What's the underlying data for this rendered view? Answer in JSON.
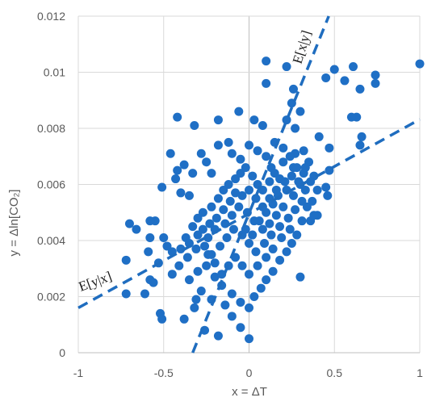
{
  "chart_data": {
    "type": "scatter",
    "title": "",
    "xlabel": "x = ΔT",
    "ylabel": "y = Δln[CO₂]",
    "xlim": [
      -1,
      1
    ],
    "ylim": [
      0,
      0.012
    ],
    "grid": true,
    "x_ticks": [
      "-1",
      "-0.5",
      "0",
      "0.5",
      "1"
    ],
    "y_ticks": [
      "0",
      "0.002",
      "0.004",
      "0.006",
      "0.008",
      "0.01",
      "0.012"
    ],
    "regression_lines": [
      {
        "label": "E[y|x]",
        "x": [
          -1,
          1
        ],
        "y": [
          0.0016,
          0.00832
        ]
      },
      {
        "label": "E[x|y]",
        "x": [
          -0.33,
          0.5
        ],
        "y": [
          0.0,
          0.0125
        ]
      }
    ],
    "points": [
      [
        1.0,
        0.0103
      ],
      [
        0.74,
        0.0099
      ],
      [
        0.74,
        0.0096
      ],
      [
        0.61,
        0.0102
      ],
      [
        0.63,
        0.0084
      ],
      [
        0.6,
        0.0084
      ],
      [
        0.65,
        0.0094
      ],
      [
        0.66,
        0.0077
      ],
      [
        0.65,
        0.0074
      ],
      [
        0.56,
        0.0097
      ],
      [
        0.5,
        0.0101
      ],
      [
        0.45,
        0.0098
      ],
      [
        0.22,
        0.0102
      ],
      [
        0.1,
        0.0104
      ],
      [
        0.1,
        0.0096
      ],
      [
        0.26,
        0.0094
      ],
      [
        0.25,
        0.0089
      ],
      [
        0.3,
        0.0086
      ],
      [
        0.22,
        0.0083
      ],
      [
        0.27,
        0.008
      ],
      [
        -0.42,
        0.0084
      ],
      [
        -0.32,
        0.0081
      ],
      [
        -0.06,
        0.0086
      ],
      [
        -0.18,
        0.0083
      ],
      [
        0.03,
        0.0083
      ],
      [
        0.08,
        0.0081
      ],
      [
        0.41,
        0.0077
      ],
      [
        0.47,
        0.0073
      ],
      [
        0.47,
        0.0065
      ],
      [
        0.45,
        0.0059
      ],
      [
        0.38,
        0.0063
      ],
      [
        0.46,
        0.0056
      ],
      [
        0.4,
        0.0049
      ],
      [
        0.31,
        0.0047
      ],
      [
        0.36,
        0.0047
      ],
      [
        0.3,
        0.0027
      ],
      [
        0.38,
        0.0049
      ],
      [
        -0.46,
        0.0071
      ],
      [
        -0.43,
        0.0062
      ],
      [
        -0.42,
        0.0065
      ],
      [
        -0.38,
        0.0067
      ],
      [
        -0.33,
        0.0064
      ],
      [
        -0.35,
        0.0056
      ],
      [
        -0.4,
        0.0057
      ],
      [
        -0.28,
        0.0071
      ],
      [
        -0.25,
        0.0068
      ],
      [
        -0.22,
        0.0064
      ],
      [
        -0.18,
        0.0074
      ],
      [
        -0.12,
        0.0075
      ],
      [
        -0.1,
        0.0071
      ],
      [
        -0.05,
        0.0069
      ],
      [
        0.0,
        0.0074
      ],
      [
        0.05,
        0.0072
      ],
      [
        0.1,
        0.007
      ],
      [
        0.15,
        0.0075
      ],
      [
        0.2,
        0.0073
      ],
      [
        0.27,
        0.0071
      ],
      [
        0.32,
        0.0072
      ],
      [
        0.35,
        0.0068
      ],
      [
        0.26,
        0.0066
      ],
      [
        0.13,
        0.0066
      ],
      [
        -0.51,
        0.0059
      ],
      [
        -0.55,
        0.0047
      ],
      [
        -0.58,
        0.0047
      ],
      [
        -0.58,
        0.0041
      ],
      [
        -0.5,
        0.0041
      ],
      [
        -0.48,
        0.0038
      ],
      [
        -0.45,
        0.0036
      ],
      [
        -0.4,
        0.0037
      ],
      [
        -0.37,
        0.0041
      ],
      [
        -0.33,
        0.0045
      ],
      [
        -0.3,
        0.0048
      ],
      [
        -0.27,
        0.005
      ],
      [
        -0.22,
        0.0052
      ],
      [
        -0.18,
        0.0055
      ],
      [
        -0.15,
        0.0058
      ],
      [
        -0.12,
        0.006
      ],
      [
        -0.08,
        0.0062
      ],
      [
        -0.05,
        0.0064
      ],
      [
        -0.02,
        0.0066
      ],
      [
        0.02,
        0.0063
      ],
      [
        0.05,
        0.006
      ],
      [
        0.08,
        0.0058
      ],
      [
        0.12,
        0.0061
      ],
      [
        0.15,
        0.0064
      ],
      [
        0.18,
        0.0062
      ],
      [
        0.22,
        0.0058
      ],
      [
        0.26,
        0.0056
      ],
      [
        0.3,
        0.006
      ],
      [
        0.33,
        0.0058
      ],
      [
        0.2,
        0.0052
      ],
      [
        0.16,
        0.0049
      ],
      [
        0.12,
        0.0046
      ],
      [
        0.08,
        0.0044
      ],
      [
        0.03,
        0.0047
      ],
      [
        -0.01,
        0.005
      ],
      [
        -0.06,
        0.0052
      ],
      [
        -0.1,
        0.0049
      ],
      [
        -0.14,
        0.0046
      ],
      [
        -0.2,
        0.0044
      ],
      [
        -0.24,
        0.0041
      ],
      [
        -0.7,
        0.0046
      ],
      [
        -0.66,
        0.0044
      ],
      [
        -0.72,
        0.0033
      ],
      [
        -0.59,
        0.0036
      ],
      [
        -0.53,
        0.0032
      ],
      [
        -0.58,
        0.0026
      ],
      [
        -0.56,
        0.0025
      ],
      [
        -0.72,
        0.0021
      ],
      [
        -0.61,
        0.0021
      ],
      [
        -0.52,
        0.0014
      ],
      [
        -0.51,
        0.0012
      ],
      [
        -0.38,
        0.0012
      ],
      [
        -0.32,
        0.0016
      ],
      [
        -0.31,
        0.0019
      ],
      [
        -0.35,
        0.0026
      ],
      [
        -0.3,
        0.0029
      ],
      [
        -0.25,
        0.0031
      ],
      [
        -0.2,
        0.0027
      ],
      [
        -0.16,
        0.0024
      ],
      [
        -0.1,
        0.0021
      ],
      [
        -0.05,
        0.0018
      ],
      [
        0.0,
        0.0016
      ],
      [
        0.03,
        0.002
      ],
      [
        0.07,
        0.0023
      ],
      [
        0.1,
        0.0026
      ],
      [
        0.14,
        0.0029
      ],
      [
        0.18,
        0.0033
      ],
      [
        0.22,
        0.0036
      ],
      [
        0.25,
        0.0039
      ],
      [
        0.28,
        0.0042
      ],
      [
        0.34,
        0.0052
      ],
      [
        0.37,
        0.0054
      ],
      [
        -0.26,
        0.0008
      ],
      [
        -0.18,
        0.0006
      ],
      [
        -0.05,
        0.0009
      ],
      [
        0.0,
        0.0005
      ],
      [
        -0.1,
        0.0013
      ],
      [
        -0.14,
        0.0017
      ],
      [
        -0.22,
        0.0019
      ],
      [
        -0.28,
        0.0022
      ],
      [
        -0.35,
        0.0039
      ],
      [
        -0.3,
        0.0042
      ],
      [
        -0.26,
        0.0038
      ],
      [
        -0.22,
        0.0035
      ],
      [
        -0.17,
        0.0038
      ],
      [
        -0.13,
        0.0041
      ],
      [
        -0.09,
        0.0044
      ],
      [
        -0.04,
        0.0042
      ],
      [
        0.0,
        0.0039
      ],
      [
        0.04,
        0.0036
      ],
      [
        0.09,
        0.0039
      ],
      [
        0.13,
        0.0042
      ],
      [
        0.18,
        0.0045
      ],
      [
        0.23,
        0.0048
      ],
      [
        0.27,
        0.0051
      ],
      [
        0.31,
        0.0054
      ],
      [
        0.24,
        0.0044
      ],
      [
        0.19,
        0.0041
      ],
      [
        0.14,
        0.0037
      ],
      [
        0.1,
        0.0034
      ],
      [
        0.05,
        0.0031
      ],
      [
        0.0,
        0.0028
      ],
      [
        -0.04,
        0.0031
      ],
      [
        -0.08,
        0.0034
      ],
      [
        -0.12,
        0.0031
      ],
      [
        -0.16,
        0.0028
      ],
      [
        -0.2,
        0.0032
      ],
      [
        -0.24,
        0.0035
      ],
      [
        -0.04,
        0.0056
      ],
      [
        0.0,
        0.0058
      ],
      [
        0.04,
        0.0055
      ],
      [
        0.08,
        0.0052
      ],
      [
        0.12,
        0.0055
      ],
      [
        0.16,
        0.0058
      ],
      [
        0.2,
        0.0068
      ],
      [
        0.24,
        0.007
      ],
      [
        0.28,
        0.0066
      ],
      [
        0.32,
        0.0064
      ],
      [
        0.36,
        0.0061
      ],
      [
        0.4,
        0.0058
      ],
      [
        -0.02,
        0.0044
      ],
      [
        0.02,
        0.0042
      ],
      [
        0.06,
        0.0047
      ],
      [
        0.1,
        0.005
      ],
      [
        0.14,
        0.0053
      ],
      [
        0.17,
        0.0056
      ],
      [
        0.21,
        0.0061
      ],
      [
        0.25,
        0.0063
      ],
      [
        0.29,
        0.0061
      ],
      [
        0.33,
        0.0066
      ],
      [
        -0.08,
        0.0057
      ],
      [
        -0.11,
        0.0054
      ],
      [
        -0.15,
        0.0051
      ],
      [
        -0.19,
        0.0048
      ],
      [
        -0.23,
        0.0046
      ],
      [
        -0.27,
        0.0044
      ],
      [
        -0.31,
        0.0037
      ],
      [
        -0.36,
        0.0034
      ],
      [
        -0.41,
        0.0031
      ],
      [
        -0.45,
        0.0028
      ]
    ]
  }
}
